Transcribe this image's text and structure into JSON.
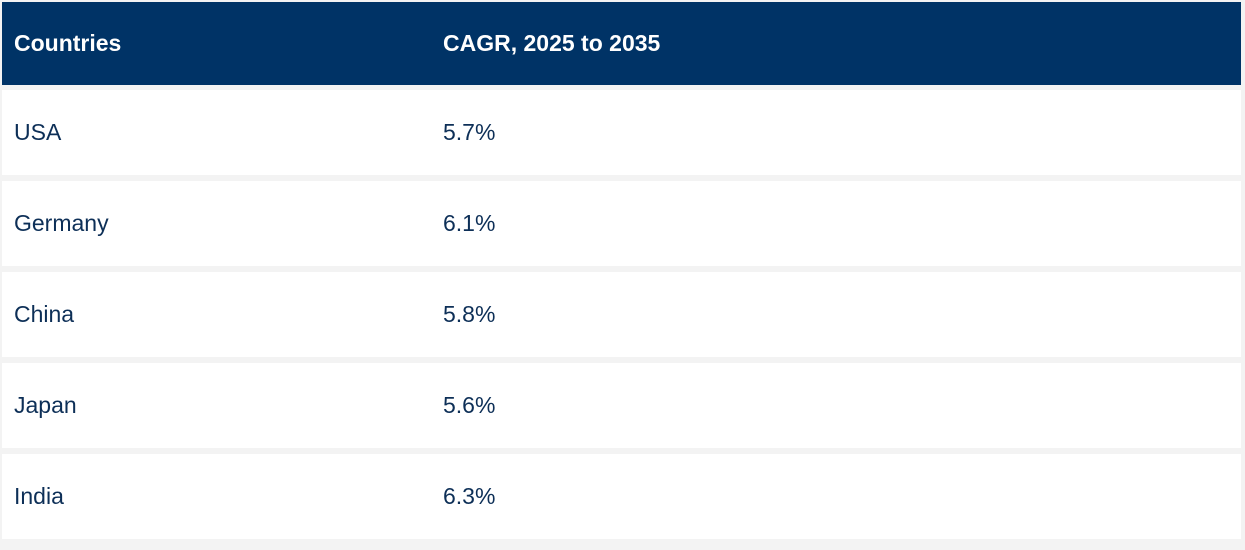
{
  "table": {
    "columns": [
      "Countries",
      "CAGR, 2025 to 2035"
    ],
    "rows": [
      {
        "country": "USA",
        "cagr": "5.7%"
      },
      {
        "country": "Germany",
        "cagr": "6.1%"
      },
      {
        "country": "China",
        "cagr": "5.8%"
      },
      {
        "country": "Japan",
        "cagr": "5.6%"
      },
      {
        "country": "India",
        "cagr": "6.3%"
      }
    ]
  },
  "colors": {
    "header_bg": "#003366",
    "header_text": "#ffffff",
    "body_text": "#0d2f57",
    "row_bg": "#ffffff",
    "separator": "#f3f3f3"
  }
}
